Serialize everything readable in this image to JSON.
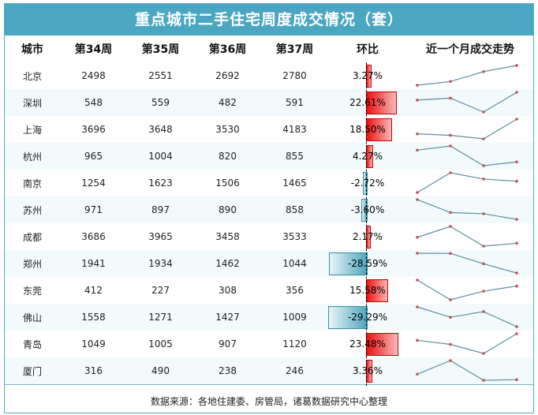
{
  "title": "重点城市二手住宅周度成交情况（套）",
  "footer": "数据来源：各地住建委、房管局，诸葛数据研究中心整理",
  "chart_data": {
    "type": "table",
    "columns": [
      "城市",
      "第34周",
      "第35周",
      "第36周",
      "第37周",
      "环比",
      "近一个月成交走势"
    ],
    "rows": [
      {
        "city": "北京",
        "v": [
          2498,
          2551,
          2692,
          2780
        ],
        "chg": 3.27,
        "chg_label": "3.27%"
      },
      {
        "city": "深圳",
        "v": [
          548,
          559,
          482,
          591
        ],
        "chg": 22.61,
        "chg_label": "22.61%"
      },
      {
        "city": "上海",
        "v": [
          3696,
          3648,
          3530,
          4183
        ],
        "chg": 18.5,
        "chg_label": "18.50%"
      },
      {
        "city": "杭州",
        "v": [
          965,
          1004,
          820,
          855
        ],
        "chg": 4.27,
        "chg_label": "4.27%"
      },
      {
        "city": "南京",
        "v": [
          1254,
          1623,
          1506,
          1465
        ],
        "chg": -2.72,
        "chg_label": "-2.72%"
      },
      {
        "city": "苏州",
        "v": [
          971,
          897,
          890,
          858
        ],
        "chg": -3.6,
        "chg_label": "-3.60%"
      },
      {
        "city": "成都",
        "v": [
          3686,
          3965,
          3458,
          3533
        ],
        "chg": 2.17,
        "chg_label": "2.17%"
      },
      {
        "city": "郑州",
        "v": [
          1941,
          1934,
          1462,
          1044
        ],
        "chg": -28.59,
        "chg_label": "-28.59%"
      },
      {
        "city": "东莞",
        "v": [
          412,
          227,
          308,
          356
        ],
        "chg": 15.58,
        "chg_label": "15.58%"
      },
      {
        "city": "佛山",
        "v": [
          1558,
          1271,
          1427,
          1009
        ],
        "chg": -29.29,
        "chg_label": "-29.29%"
      },
      {
        "city": "青岛",
        "v": [
          1049,
          1005,
          907,
          1120
        ],
        "chg": 23.48,
        "chg_label": "23.48%"
      },
      {
        "city": "厦门",
        "v": [
          316,
          490,
          238,
          246
        ],
        "chg": 3.36,
        "chg_label": "3.36%"
      }
    ],
    "colors": {
      "header": "#4ba7c1",
      "positive": "#ee1111",
      "negative": "#4ea7be",
      "sparkline": "#5b8f9c",
      "marker": "#c0505a"
    }
  }
}
